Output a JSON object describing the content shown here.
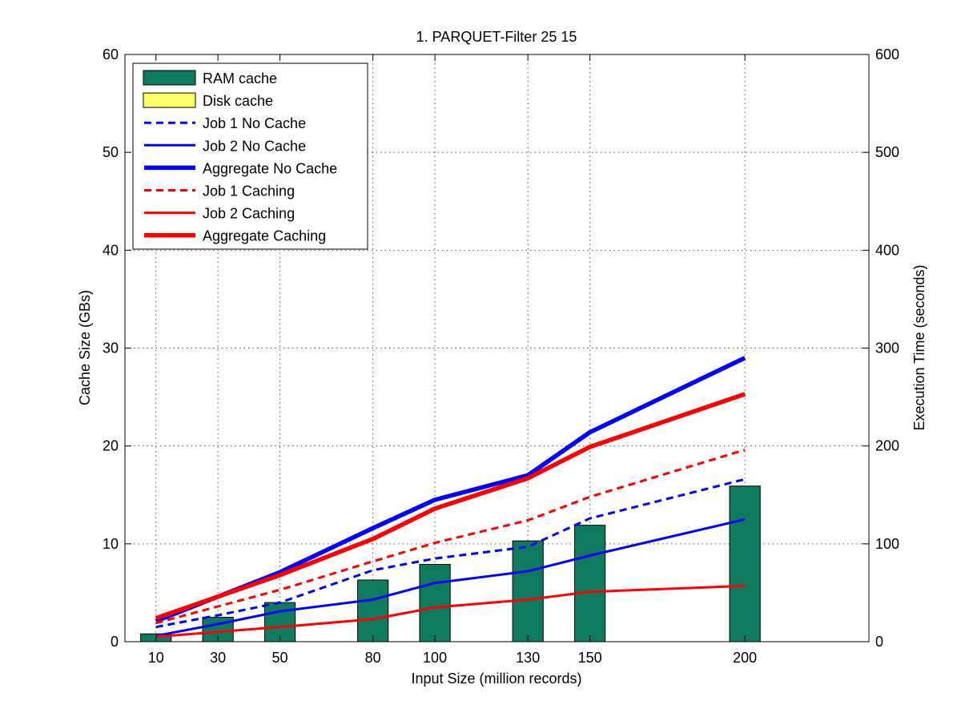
{
  "chart_data": {
    "type": "bar",
    "title": "1. PARQUET-Filter 25 15",
    "xlabel": "Input Size (million records)",
    "ylabel_left": "Cache Size (GBs)",
    "ylabel_right": "Execution Time (seconds)",
    "xlim": [
      0,
      240
    ],
    "ylim_left": [
      0,
      60
    ],
    "ylim_right": [
      0,
      600
    ],
    "yticks_left": [
      0,
      10,
      20,
      30,
      40,
      50,
      60
    ],
    "yticks_right": [
      0,
      100,
      200,
      300,
      400,
      500,
      600
    ],
    "x": [
      10,
      30,
      50,
      80,
      100,
      130,
      150,
      200
    ],
    "grid": true,
    "legend_position": "top-left",
    "bar_series": [
      {
        "name": "RAM cache",
        "axis": "left",
        "color": "#0f7b5e",
        "values": [
          0.8,
          2.5,
          4.0,
          6.3,
          7.9,
          10.3,
          11.9,
          15.9
        ]
      },
      {
        "name": "Disk cache",
        "axis": "left",
        "color": "#ffff66",
        "values": [
          0,
          0,
          0,
          0,
          0,
          0,
          0,
          0
        ]
      }
    ],
    "line_series": [
      {
        "name": "Job 1 No Cache",
        "axis": "right",
        "color": "#0000ff",
        "style": "dashed",
        "width": 3,
        "values": [
          15,
          27,
          40,
          73,
          85,
          97,
          126,
          166
        ]
      },
      {
        "name": "Job 2 No Cache",
        "axis": "right",
        "color": "#0000ff",
        "style": "solid",
        "width": 3,
        "values": [
          6,
          18,
          31,
          43,
          60,
          72,
          88,
          125
        ]
      },
      {
        "name": "Aggregate No Cache",
        "axis": "right",
        "color": "#0000ff",
        "style": "solid",
        "width": 5.5,
        "values": [
          21,
          46,
          71,
          116,
          145,
          170,
          214,
          290
        ]
      },
      {
        "name": "Job 1 Caching",
        "axis": "right",
        "color": "#ff0000",
        "style": "dashed",
        "width": 3,
        "values": [
          19,
          36,
          53,
          82,
          101,
          124,
          148,
          196
        ]
      },
      {
        "name": "Job 2 Caching",
        "axis": "right",
        "color": "#ff0000",
        "style": "solid",
        "width": 3,
        "values": [
          5,
          10,
          15,
          23,
          35,
          43,
          51,
          57
        ]
      },
      {
        "name": "Aggregate Caching",
        "axis": "right",
        "color": "#ff0000",
        "style": "solid",
        "width": 5.5,
        "values": [
          24,
          46,
          68,
          105,
          136,
          167,
          199,
          253
        ]
      }
    ]
  }
}
